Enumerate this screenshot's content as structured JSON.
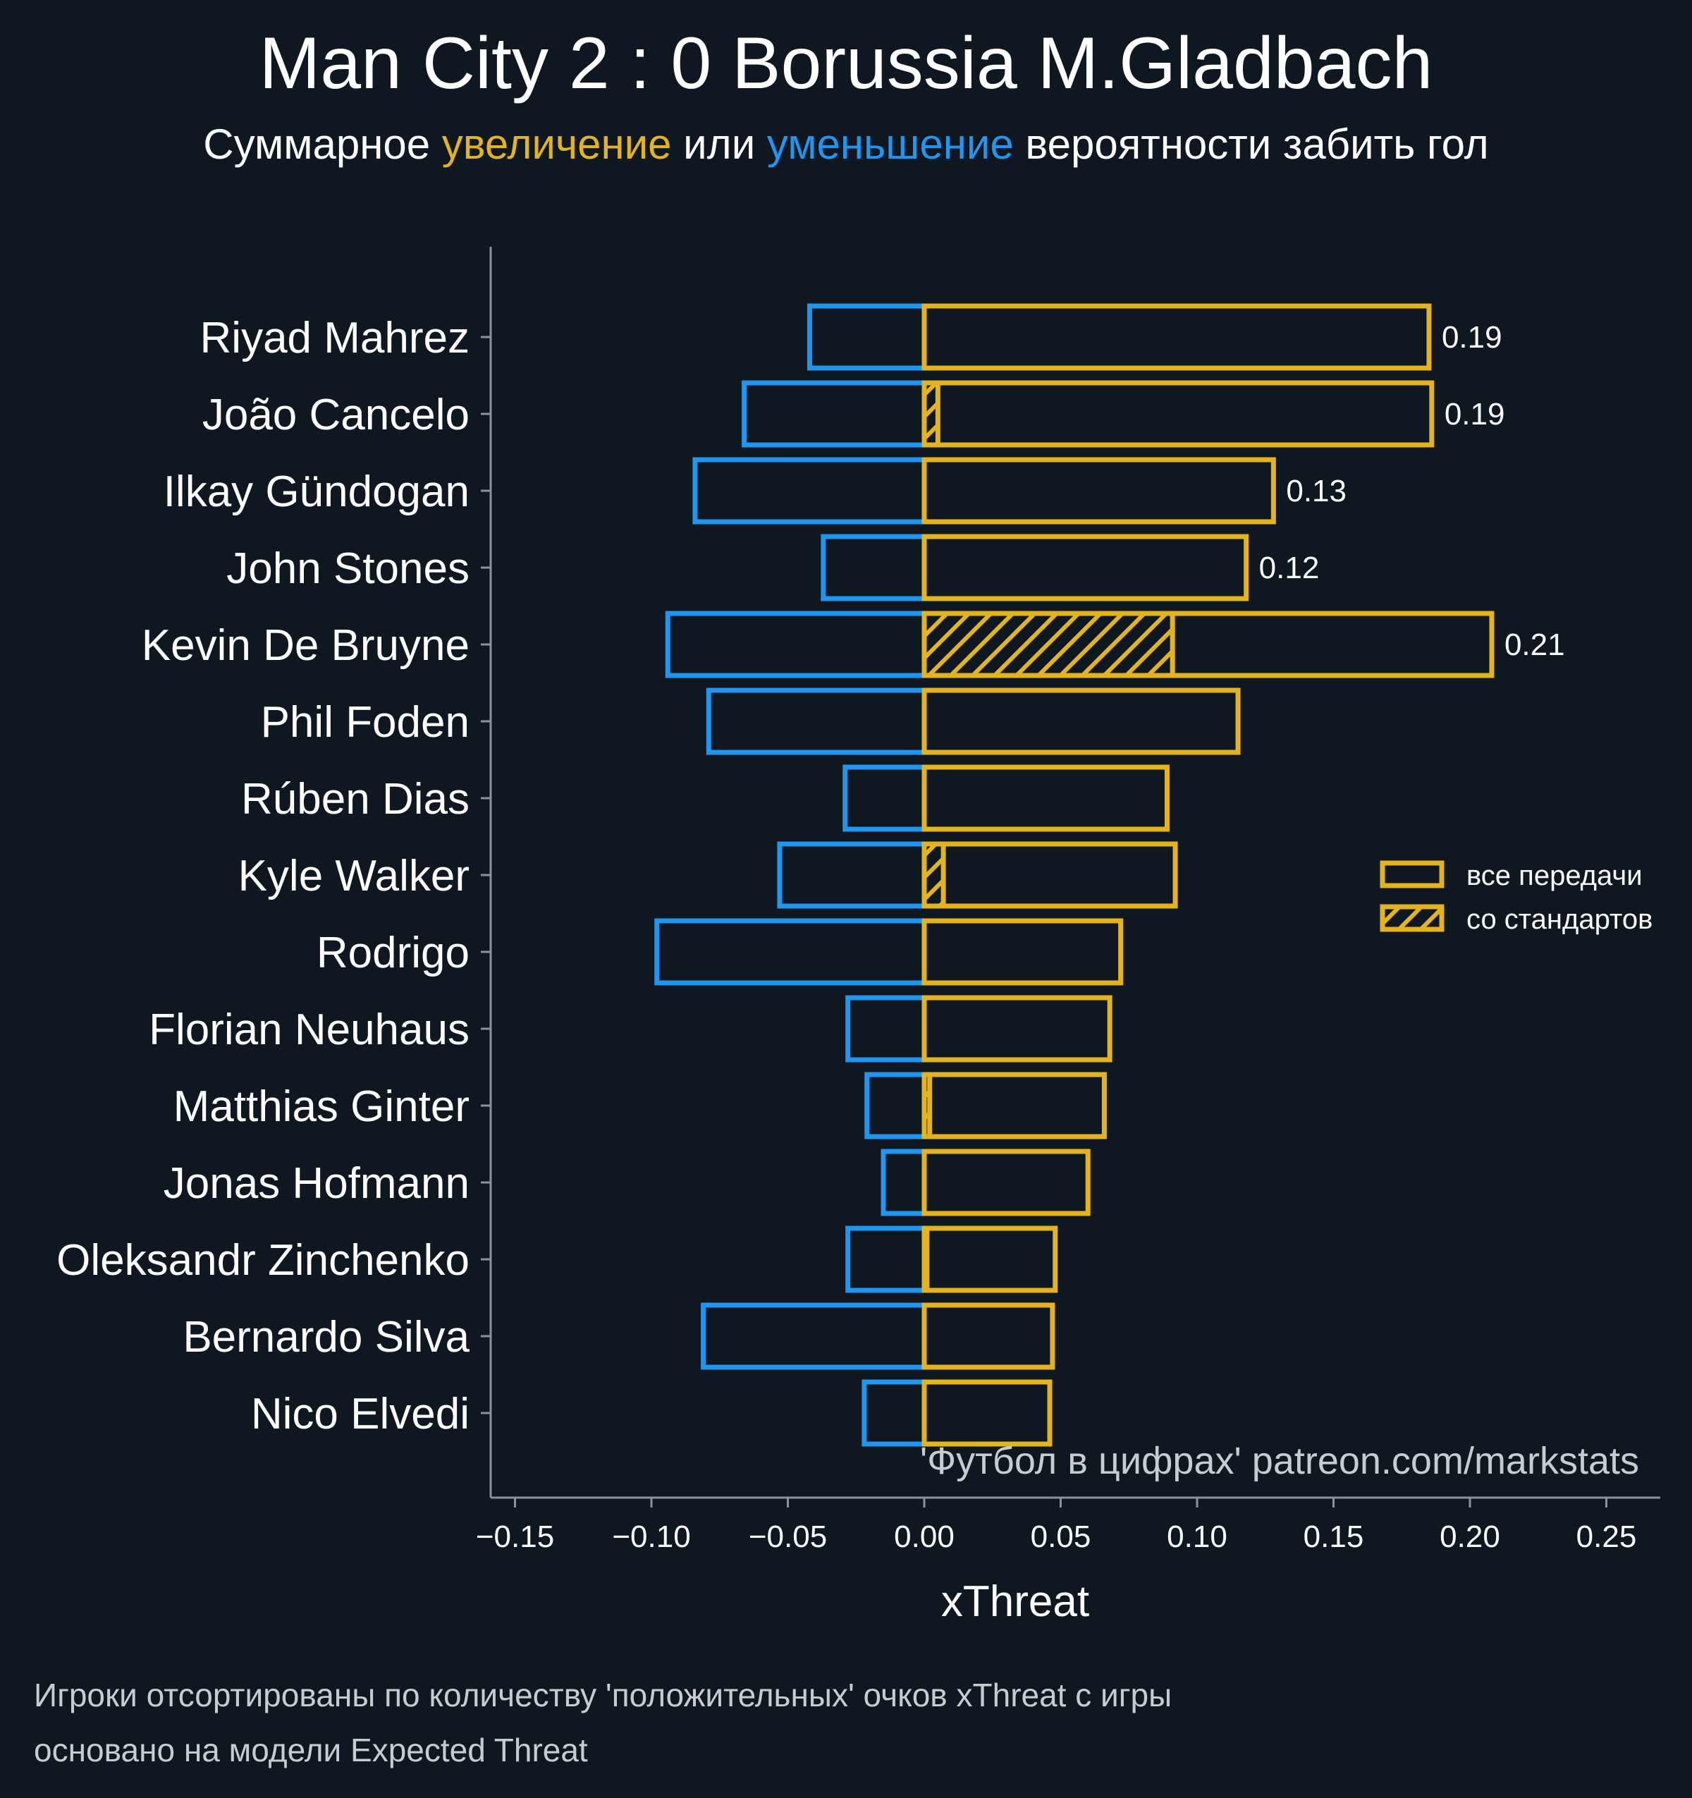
{
  "chart_data": {
    "type": "bar",
    "title": "Man City 2 : 0 Borussia M.Gladbach",
    "subtitle": {
      "parts": [
        "Суммарное ",
        "увеличение",
        " или ",
        "уменьшение",
        " вероятности забить гол"
      ]
    },
    "xlabel": "xThreat",
    "ylabel": "",
    "xlim": [
      -0.16,
      0.27
    ],
    "xticks": [
      -0.15,
      -0.1,
      -0.05,
      0.0,
      0.05,
      0.1,
      0.15,
      0.2,
      0.25
    ],
    "xtick_labels": [
      "−0.15",
      "−0.10",
      "−0.05",
      "0.00",
      "0.05",
      "0.10",
      "0.15",
      "0.20",
      "0.25"
    ],
    "grid": false,
    "categories": [
      "Riyad Mahrez",
      "João Cancelo",
      "Ilkay Gündogan",
      "John Stones",
      "Kevin De Bruyne",
      "Phil Foden",
      "Rúben Dias",
      "Kyle Walker",
      "Rodrigo",
      "Florian Neuhaus",
      "Matthias Ginter",
      "Jonas Hofmann",
      "Oleksandr Zinchenko",
      "Bernardo Silva",
      "Nico Elvedi"
    ],
    "series": [
      {
        "name": "positive",
        "values": [
          0.185,
          0.186,
          0.128,
          0.118,
          0.208,
          0.115,
          0.089,
          0.092,
          0.072,
          0.068,
          0.066,
          0.06,
          0.048,
          0.047,
          0.046
        ]
      },
      {
        "name": "negative",
        "values": [
          -0.042,
          -0.066,
          -0.084,
          -0.037,
          -0.094,
          -0.079,
          -0.029,
          -0.053,
          -0.098,
          -0.028,
          -0.021,
          -0.015,
          -0.028,
          -0.081,
          -0.022
        ]
      },
      {
        "name": "set_pieces",
        "values": [
          0,
          0.005,
          0,
          0,
          0.091,
          0,
          0,
          0.007,
          0,
          0,
          0.002,
          0,
          0.001,
          0,
          0
        ]
      }
    ],
    "data_labels": [
      "0.19",
      "0.19",
      "0.13",
      "0.12",
      "0.21",
      "",
      "",
      "",
      "",
      "",
      "",
      "",
      "",
      "",
      ""
    ],
    "legend": {
      "position": "right",
      "entries": [
        "все передачи",
        "со стандартов"
      ]
    },
    "watermark": "'Футбол в цифрах' patreon.com/markstats",
    "footnotes": [
      "Игроки отсортированы по количеству 'положительных' очков xThreat с игры",
      "основано на модели Expected Threat"
    ],
    "colors": {
      "background": "#0f1820",
      "positive": "#e3b41e",
      "negative": "#1f96f0",
      "axis": "#8a9399",
      "muted": "#c8ccd0"
    }
  }
}
